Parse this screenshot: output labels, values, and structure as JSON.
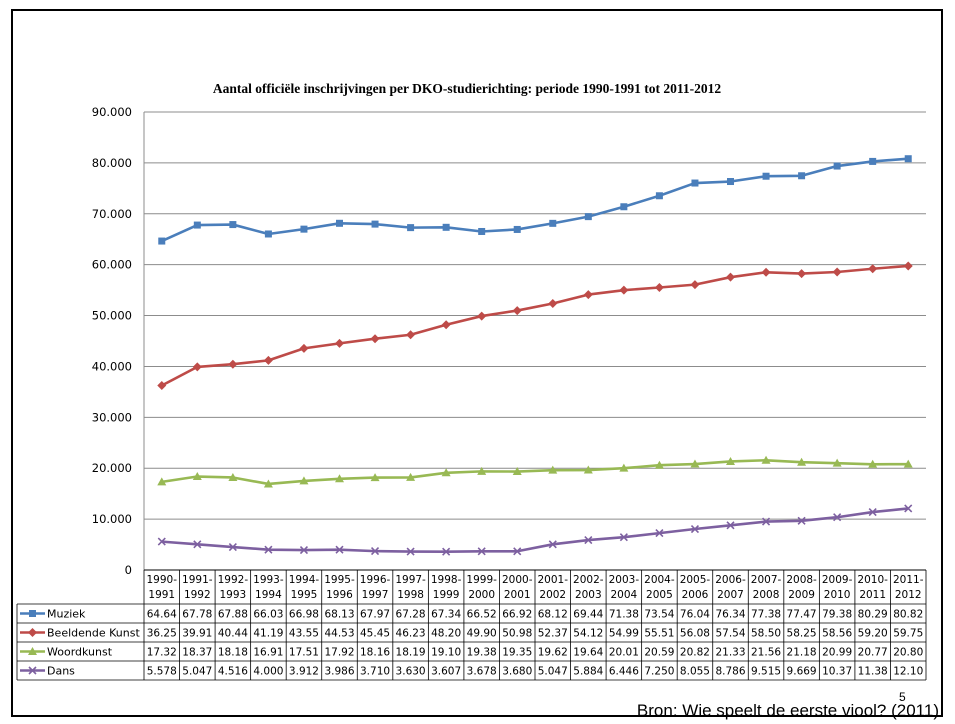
{
  "chart_data": {
    "type": "line",
    "title": "Aantal officiële inschrijvingen per DKO-studierichting: periode 1990-1991 tot 2011-2012",
    "xlabel": "",
    "ylabel": "",
    "ylim": [
      0,
      90000
    ],
    "yticks": [
      "0",
      "10.000",
      "20.000",
      "30.000",
      "40.000",
      "50.000",
      "60.000",
      "70.000",
      "80.000",
      "90.000"
    ],
    "grid": true,
    "legend": "data-table",
    "categories": [
      [
        "1990-",
        "1991"
      ],
      [
        "1991-",
        "1992"
      ],
      [
        "1992-",
        "1993"
      ],
      [
        "1993-",
        "1994"
      ],
      [
        "1994-",
        "1995"
      ],
      [
        "1995-",
        "1996"
      ],
      [
        "1996-",
        "1997"
      ],
      [
        "1997-",
        "1998"
      ],
      [
        "1998-",
        "1999"
      ],
      [
        "1999-",
        "2000"
      ],
      [
        "2000-",
        "2001"
      ],
      [
        "2001-",
        "2002"
      ],
      [
        "2002-",
        "2003"
      ],
      [
        "2003-",
        "2004"
      ],
      [
        "2004-",
        "2005"
      ],
      [
        "2005-",
        "2006"
      ],
      [
        "2006-",
        "2007"
      ],
      [
        "2007-",
        "2008"
      ],
      [
        "2008-",
        "2009"
      ],
      [
        "2009-",
        "2010"
      ],
      [
        "2010-",
        "2011"
      ],
      [
        "2011-",
        "2012"
      ]
    ],
    "series": [
      {
        "name": "Muziek",
        "color": "#4a7ebb",
        "marker": "square",
        "values": [
          64640,
          67780,
          67880,
          66030,
          66980,
          68130,
          67970,
          67280,
          67340,
          66520,
          66920,
          68120,
          69440,
          71380,
          73540,
          76040,
          76340,
          77380,
          77470,
          79380,
          80290,
          80820
        ],
        "labels": [
          "64.64",
          "67.78",
          "67.88",
          "66.03",
          "66.98",
          "68.13",
          "67.97",
          "67.28",
          "67.34",
          "66.52",
          "66.92",
          "68.12",
          "69.44",
          "71.38",
          "73.54",
          "76.04",
          "76.34",
          "77.38",
          "77.47",
          "79.38",
          "80.29",
          "80.82"
        ]
      },
      {
        "name": "Beeldende Kunst",
        "color": "#be4b48",
        "marker": "diamond",
        "values": [
          36250,
          39910,
          40440,
          41190,
          43550,
          44530,
          45450,
          46230,
          48200,
          49900,
          50980,
          52370,
          54120,
          54990,
          55510,
          56080,
          57540,
          58500,
          58250,
          58560,
          59200,
          59750
        ],
        "labels": [
          "36.25",
          "39.91",
          "40.44",
          "41.19",
          "43.55",
          "44.53",
          "45.45",
          "46.23",
          "48.20",
          "49.90",
          "50.98",
          "52.37",
          "54.12",
          "54.99",
          "55.51",
          "56.08",
          "57.54",
          "58.50",
          "58.25",
          "58.56",
          "59.20",
          "59.75"
        ]
      },
      {
        "name": "Woordkunst",
        "color": "#98b954",
        "marker": "triangle",
        "values": [
          17320,
          18370,
          18180,
          16910,
          17510,
          17920,
          18160,
          18190,
          19100,
          19380,
          19350,
          19620,
          19640,
          20010,
          20590,
          20820,
          21330,
          21560,
          21180,
          20990,
          20770,
          20800
        ],
        "labels": [
          "17.32",
          "18.37",
          "18.18",
          "16.91",
          "17.51",
          "17.92",
          "18.16",
          "18.19",
          "19.10",
          "19.38",
          "19.35",
          "19.62",
          "19.64",
          "20.01",
          "20.59",
          "20.82",
          "21.33",
          "21.56",
          "21.18",
          "20.99",
          "20.77",
          "20.80"
        ]
      },
      {
        "name": "Dans",
        "color": "#7d60a0",
        "marker": "x",
        "values": [
          5578,
          5047,
          4516,
          4000,
          3912,
          3986,
          3710,
          3630,
          3607,
          3678,
          3680,
          5047,
          5884,
          6446,
          7250,
          8055,
          8786,
          9515,
          9669,
          10370,
          11380,
          12100
        ],
        "labels": [
          "5.578",
          "5.047",
          "4.516",
          "4.000",
          "3.912",
          "3.986",
          "3.710",
          "3.630",
          "3.607",
          "3.678",
          "3.680",
          "5.047",
          "5.884",
          "6.446",
          "7.250",
          "8.055",
          "8.786",
          "9.515",
          "9.669",
          "10.37",
          "11.38",
          "12.10"
        ]
      }
    ]
  },
  "footer": {
    "source": "Bron: Wie speelt de eerste viool? (2011)",
    "page_number": "5"
  }
}
